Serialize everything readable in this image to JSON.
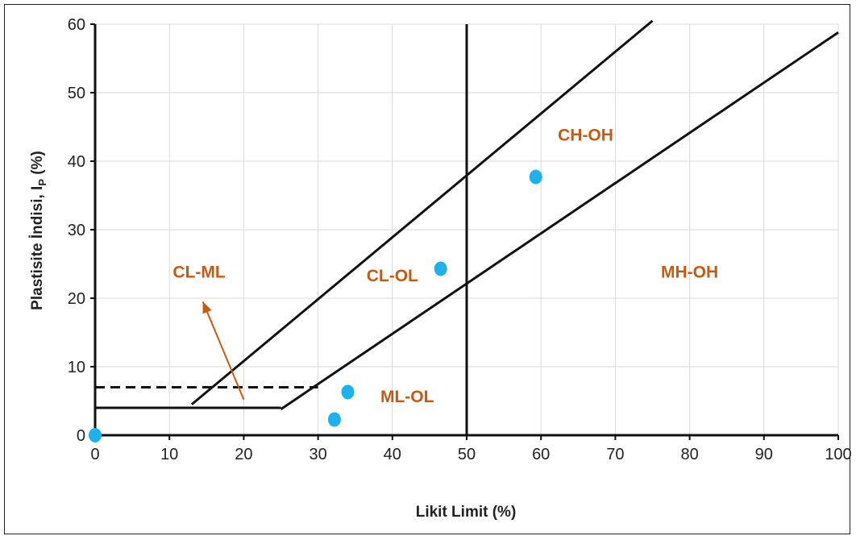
{
  "chart_data": {
    "type": "scatter",
    "title": "",
    "xlabel": "Likit Limit (%)",
    "ylabel_main": "Plastisite İndisi, I",
    "ylabel_sub": "P",
    "ylabel_suffix": " (%)",
    "xlim": [
      0,
      100
    ],
    "ylim": [
      0,
      60
    ],
    "x_ticks": [
      0,
      10,
      20,
      30,
      40,
      50,
      60,
      70,
      80,
      90,
      100
    ],
    "y_ticks": [
      0,
      10,
      20,
      30,
      40,
      50,
      60
    ],
    "grid": true,
    "points": [
      {
        "x": 0,
        "y": 0
      },
      {
        "x": 32.2,
        "y": 2.3
      },
      {
        "x": 34.0,
        "y": 6.3
      },
      {
        "x": 46.5,
        "y": 24.3
      },
      {
        "x": 59.3,
        "y": 37.7
      }
    ],
    "point_color": "#1fb1ec",
    "boundary_lines": [
      {
        "name": "a-line",
        "style": "solid",
        "x": [
          13,
          75
        ],
        "y": [
          4.5,
          60.5
        ]
      },
      {
        "name": "b-line",
        "style": "solid",
        "x": [
          25,
          100
        ],
        "y": [
          3.8,
          58.8
        ]
      },
      {
        "name": "ll50-line",
        "style": "solid",
        "x": [
          50,
          50
        ],
        "y": [
          0,
          60
        ]
      },
      {
        "name": "ip4-line",
        "style": "solid",
        "x": [
          0,
          25
        ],
        "y": [
          4,
          4
        ]
      },
      {
        "name": "ip7-line",
        "style": "dashed",
        "x": [
          0,
          30
        ],
        "y": [
          7,
          7
        ]
      }
    ],
    "zones": [
      {
        "label": "CL-ML",
        "x": 14,
        "y": 23
      },
      {
        "label": "CL-OL",
        "x": 40,
        "y": 22.5
      },
      {
        "label": "CH-OH",
        "x": 66,
        "y": 43
      },
      {
        "label": "MH-OH",
        "x": 80,
        "y": 23
      },
      {
        "label": "ML-OL",
        "x": 42,
        "y": 4.8
      }
    ],
    "arrow": {
      "from": [
        20,
        5.2
      ],
      "to": [
        14.5,
        19.5
      ],
      "color": "#c55a11"
    }
  }
}
